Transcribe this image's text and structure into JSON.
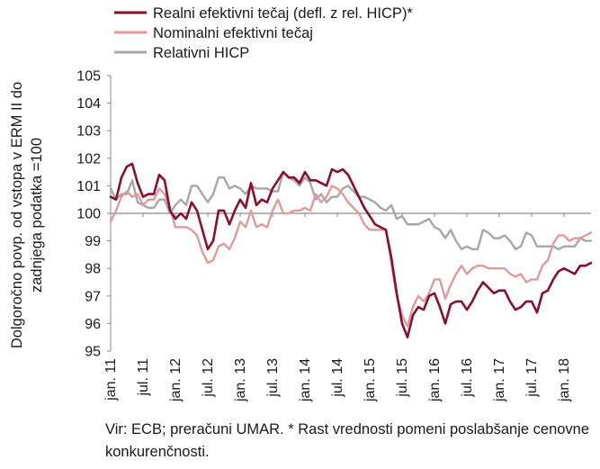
{
  "chart_data": {
    "type": "line",
    "title": "",
    "xlabel": "",
    "ylabel": "Dolgoročno povp. od vstopa v ERM II do zadnjega podatka =100",
    "ylim": [
      95,
      105
    ],
    "yticks": [
      95,
      96,
      97,
      98,
      99,
      100,
      101,
      102,
      103,
      104,
      105
    ],
    "reference_line": 100,
    "grid": false,
    "legend_position": "top",
    "x_labels": [
      "jan. 11",
      "jul. 11",
      "jan. 12",
      "jul. 12",
      "jan. 13",
      "jul. 13",
      "jan. 14",
      "jul. 14",
      "jan. 15",
      "jul. 15",
      "jan. 16",
      "jul. 16",
      "jan. 17",
      "jul. 17",
      "jan. 18"
    ],
    "x_start": "2011-01",
    "x_end": "2018-03",
    "series": [
      {
        "name": "Realni efektivni tečaj (defl. z rel. HICP)*",
        "color": "#8b0e2e",
        "values": [
          100.6,
          100.5,
          101.3,
          101.7,
          101.8,
          101.1,
          100.6,
          100.7,
          100.7,
          101.4,
          101.2,
          100.1,
          99.8,
          100.0,
          99.8,
          100.4,
          100.1,
          99.4,
          98.7,
          99.0,
          100.1,
          100.1,
          99.6,
          100.1,
          100.5,
          100.2,
          101.1,
          100.3,
          100.5,
          100.4,
          100.9,
          101.2,
          101.5,
          101.3,
          101.3,
          101.1,
          101.5,
          101.2,
          101.2,
          101.1,
          101.0,
          101.6,
          101.5,
          101.6,
          101.4,
          101.0,
          100.6,
          100.2,
          99.9,
          99.6,
          99.5,
          99.4,
          98.4,
          97.1,
          96.0,
          95.5,
          96.3,
          96.6,
          96.5,
          97.0,
          97.1,
          96.6,
          96.0,
          96.7,
          96.8,
          96.8,
          96.5,
          96.8,
          97.2,
          97.5,
          97.3,
          97.1,
          97.2,
          97.2,
          96.8,
          96.5,
          96.6,
          96.8,
          96.8,
          96.4,
          97.1,
          97.2,
          97.6,
          97.9,
          98.0,
          97.9,
          97.8,
          98.1,
          98.1,
          98.2
        ]
      },
      {
        "name": "Nominalni efektivni tečaj",
        "color": "#e09a9c",
        "values": [
          99.7,
          100.1,
          100.6,
          100.8,
          100.6,
          100.7,
          100.3,
          100.5,
          100.5,
          100.9,
          100.7,
          100.2,
          99.5,
          99.5,
          99.5,
          99.4,
          99.2,
          98.6,
          98.2,
          98.3,
          98.8,
          98.9,
          98.7,
          99.1,
          99.7,
          99.5,
          100.1,
          99.5,
          99.6,
          99.5,
          100.1,
          100.5,
          100.0,
          100.0,
          100.1,
          100.1,
          100.2,
          100.1,
          100.7,
          100.4,
          100.6,
          101.0,
          100.9,
          100.7,
          100.4,
          100.2,
          100.0,
          99.6,
          99.4,
          99.4,
          99.4,
          99.4,
          98.2,
          97.0,
          96.3,
          95.9,
          96.6,
          97.0,
          96.8,
          97.1,
          97.6,
          97.6,
          96.9,
          97.4,
          97.8,
          98.1,
          97.8,
          98.0,
          98.1,
          98.1,
          98.0,
          98.0,
          98.0,
          98.0,
          97.8,
          97.7,
          97.8,
          97.5,
          97.6,
          97.6,
          98.1,
          98.3,
          98.9,
          99.2,
          99.2,
          99.0,
          99.1,
          99.1,
          99.2,
          99.3
        ]
      },
      {
        "name": "Relativni HICP",
        "color": "#a7a7a7",
        "values": [
          100.9,
          100.5,
          100.7,
          100.7,
          101.2,
          100.4,
          100.3,
          100.2,
          100.2,
          100.5,
          100.5,
          100.0,
          100.3,
          100.5,
          100.3,
          101.0,
          101.0,
          100.7,
          100.4,
          100.7,
          101.3,
          101.3,
          100.9,
          101.0,
          100.9,
          100.7,
          101.0,
          100.9,
          100.9,
          100.9,
          100.8,
          100.8,
          101.5,
          101.3,
          101.2,
          101.0,
          101.3,
          101.1,
          100.5,
          100.7,
          100.4,
          100.6,
          100.6,
          100.9,
          101.0,
          100.8,
          100.6,
          100.6,
          100.5,
          100.4,
          100.2,
          100.1,
          100.3,
          99.8,
          99.9,
          99.6,
          99.6,
          99.6,
          99.7,
          99.8,
          99.5,
          99.4,
          99.1,
          99.4,
          99.0,
          98.7,
          98.8,
          98.7,
          98.7,
          99.4,
          99.3,
          99.1,
          99.1,
          99.2,
          99.0,
          98.7,
          98.8,
          99.3,
          99.2,
          98.8,
          98.8,
          98.8,
          98.8,
          98.7,
          98.8,
          98.8,
          98.8,
          99.1,
          99.0,
          99.0
        ]
      }
    ]
  },
  "source_note": "Vir: ECB; preračuni UMAR. * Rast vrednosti pomeni poslabšanje cenovne konkurenčnosti."
}
